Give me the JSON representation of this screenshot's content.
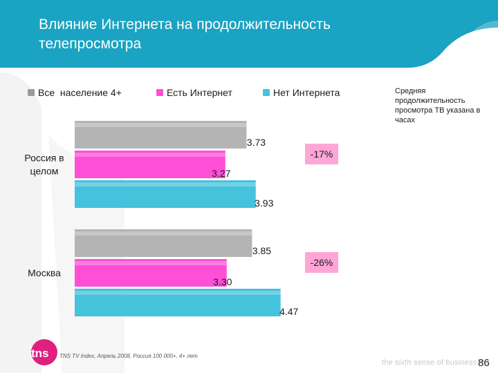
{
  "title": "Влияние Интернета на продолжительность телепросмотра",
  "side_note": "Средняя продолжительность просмотра ТВ указана в часах",
  "source": "TNS TV Index,  Апрель 2008, Россия 100 000+, 4+ лет",
  "logo_text": "tns",
  "tagline": "the sixth sense of business™",
  "page_number": "86",
  "colors": {
    "header": "#1aa3c2",
    "gray": "#b4b4b4",
    "pink": "#ff4fd8",
    "cyan": "#45c2dc",
    "badge_bg": "#ffa6d6",
    "logo": "#e0207f"
  },
  "chart_data": {
    "type": "bar",
    "orientation": "horizontal",
    "categories": [
      "Россия в целом",
      "Москва"
    ],
    "series": [
      {
        "name": "Все  население 4+",
        "values": [
          3.73,
          3.85
        ]
      },
      {
        "name": "Есть Интернет",
        "values": [
          3.27,
          3.3
        ]
      },
      {
        "name": "Нет Интернета",
        "values": [
          3.93,
          4.47
        ]
      }
    ],
    "value_labels": [
      [
        "3.73",
        "3.27",
        "3.93"
      ],
      [
        "3.85",
        "3.30",
        "4.47"
      ]
    ],
    "annotations": [
      "-17%",
      "-26%"
    ],
    "legend_position": "top",
    "grid": false
  }
}
